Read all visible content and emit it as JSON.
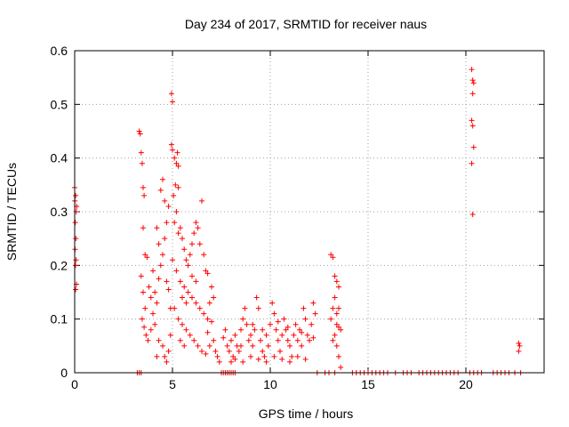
{
  "chart_data": {
    "type": "scatter",
    "title": "Day 234 of 2017, SRMTID for receiver naus",
    "xlabel": "GPS time / hours",
    "ylabel": "SRMTID / TECUs",
    "xlim": [
      0,
      24
    ],
    "ylim": [
      0,
      0.6
    ],
    "xticks": [
      0,
      5,
      10,
      15,
      20
    ],
    "yticks": [
      0,
      0.1,
      0.2,
      0.3,
      0.4,
      0.5,
      0.6
    ],
    "xtick_labels": [
      "0",
      "5",
      "10",
      "15",
      "20"
    ],
    "ytick_labels": [
      "0",
      "0.1",
      "0.2",
      "0.3",
      "0.4",
      "0.5",
      "0.6"
    ],
    "grid": true,
    "legend": "none",
    "marker": "+",
    "color": "#ff0000",
    "points": [
      [
        0.0,
        0.345
      ],
      [
        0.05,
        0.33
      ],
      [
        0.08,
        0.3
      ],
      [
        0.03,
        0.28
      ],
      [
        0.06,
        0.25
      ],
      [
        0.02,
        0.23
      ],
      [
        0.07,
        0.21
      ],
      [
        0.04,
        0.2
      ],
      [
        0.09,
        0.165
      ],
      [
        0.05,
        0.155
      ],
      [
        0.1,
        0.31
      ],
      [
        0.01,
        0.32
      ],
      [
        3.3,
        0.45
      ],
      [
        3.35,
        0.445
      ],
      [
        3.4,
        0.41
      ],
      [
        3.45,
        0.39
      ],
      [
        3.5,
        0.345
      ],
      [
        3.55,
        0.33
      ],
      [
        3.5,
        0.27
      ],
      [
        3.6,
        0.22
      ],
      [
        3.7,
        0.215
      ],
      [
        3.4,
        0.18
      ],
      [
        3.5,
        0.15
      ],
      [
        3.6,
        0.12
      ],
      [
        3.45,
        0.1
      ],
      [
        3.55,
        0.085
      ],
      [
        3.65,
        0.07
      ],
      [
        3.75,
        0.06
      ],
      [
        3.8,
        0.16
      ],
      [
        3.9,
        0.14
      ],
      [
        4.0,
        0.11
      ],
      [
        4.1,
        0.09
      ],
      [
        4.2,
        0.13
      ],
      [
        4.3,
        0.175
      ],
      [
        4.4,
        0.2
      ],
      [
        4.5,
        0.22
      ],
      [
        4.6,
        0.25
      ],
      [
        4.7,
        0.28
      ],
      [
        4.8,
        0.31
      ],
      [
        4.4,
        0.34
      ],
      [
        4.5,
        0.36
      ],
      [
        4.6,
        0.32
      ],
      [
        4.2,
        0.27
      ],
      [
        4.3,
        0.24
      ],
      [
        4.1,
        0.15
      ],
      [
        4.0,
        0.19
      ],
      [
        3.9,
        0.08
      ],
      [
        4.5,
        0.05
      ],
      [
        4.6,
        0.03
      ],
      [
        4.7,
        0.02
      ],
      [
        4.8,
        0.04
      ],
      [
        4.9,
        0.07
      ],
      [
        4.3,
        0.06
      ],
      [
        4.2,
        0.03
      ],
      [
        4.9,
        0.12
      ],
      [
        4.8,
        0.155
      ],
      [
        4.7,
        0.17
      ],
      [
        4.95,
        0.52
      ],
      [
        5.0,
        0.505
      ],
      [
        4.95,
        0.425
      ],
      [
        5.0,
        0.415
      ],
      [
        5.1,
        0.4
      ],
      [
        5.2,
        0.39
      ],
      [
        5.3,
        0.385
      ],
      [
        5.25,
        0.41
      ],
      [
        5.15,
        0.35
      ],
      [
        5.05,
        0.33
      ],
      [
        5.3,
        0.345
      ],
      [
        5.2,
        0.3
      ],
      [
        5.1,
        0.28
      ],
      [
        5.3,
        0.26
      ],
      [
        5.4,
        0.27
      ],
      [
        5.5,
        0.25
      ],
      [
        5.6,
        0.23
      ],
      [
        5.7,
        0.21
      ],
      [
        5.8,
        0.2
      ],
      [
        5.9,
        0.22
      ],
      [
        6.0,
        0.24
      ],
      [
        6.1,
        0.26
      ],
      [
        6.2,
        0.28
      ],
      [
        6.3,
        0.27
      ],
      [
        6.4,
        0.24
      ],
      [
        6.5,
        0.32
      ],
      [
        6.6,
        0.22
      ],
      [
        6.7,
        0.19
      ],
      [
        6.8,
        0.185
      ],
      [
        5.0,
        0.21
      ],
      [
        5.2,
        0.19
      ],
      [
        5.4,
        0.17
      ],
      [
        5.6,
        0.16
      ],
      [
        5.8,
        0.15
      ],
      [
        6.0,
        0.14
      ],
      [
        6.2,
        0.13
      ],
      [
        6.4,
        0.12
      ],
      [
        6.6,
        0.11
      ],
      [
        6.8,
        0.1
      ],
      [
        7.0,
        0.095
      ],
      [
        5.1,
        0.12
      ],
      [
        5.3,
        0.1
      ],
      [
        5.5,
        0.09
      ],
      [
        5.7,
        0.08
      ],
      [
        5.9,
        0.07
      ],
      [
        6.1,
        0.06
      ],
      [
        6.3,
        0.05
      ],
      [
        6.5,
        0.04
      ],
      [
        6.7,
        0.035
      ],
      [
        6.9,
        0.05
      ],
      [
        7.1,
        0.06
      ],
      [
        7.2,
        0.04
      ],
      [
        7.3,
        0.03
      ],
      [
        7.4,
        0.02
      ],
      [
        7.1,
        0.14
      ],
      [
        7.0,
        0.16
      ],
      [
        6.9,
        0.13
      ],
      [
        5.5,
        0.14
      ],
      [
        5.7,
        0.13
      ],
      [
        6.0,
        0.18
      ],
      [
        6.2,
        0.17
      ],
      [
        5.4,
        0.06
      ],
      [
        5.6,
        0.05
      ],
      [
        6.8,
        0.075
      ],
      [
        7.6,
        0.065
      ],
      [
        7.7,
        0.08
      ],
      [
        7.8,
        0.05
      ],
      [
        7.9,
        0.04
      ],
      [
        8.0,
        0.06
      ],
      [
        8.1,
        0.03
      ],
      [
        8.2,
        0.07
      ],
      [
        8.3,
        0.05
      ],
      [
        8.4,
        0.04
      ],
      [
        8.5,
        0.08
      ],
      [
        8.6,
        0.1
      ],
      [
        8.7,
        0.12
      ],
      [
        8.8,
        0.09
      ],
      [
        8.9,
        0.06
      ],
      [
        9.0,
        0.07
      ],
      [
        9.1,
        0.05
      ],
      [
        9.2,
        0.08
      ],
      [
        9.3,
        0.14
      ],
      [
        9.4,
        0.12
      ],
      [
        9.5,
        0.06
      ],
      [
        9.6,
        0.04
      ],
      [
        9.7,
        0.03
      ],
      [
        9.8,
        0.07
      ],
      [
        9.9,
        0.05
      ],
      [
        10.0,
        0.09
      ],
      [
        10.1,
        0.13
      ],
      [
        10.2,
        0.11
      ],
      [
        10.3,
        0.08
      ],
      [
        10.4,
        0.06
      ],
      [
        10.5,
        0.04
      ],
      [
        10.6,
        0.07
      ],
      [
        10.7,
        0.1
      ],
      [
        10.8,
        0.08
      ],
      [
        10.9,
        0.06
      ],
      [
        11.0,
        0.05
      ],
      [
        11.1,
        0.03
      ],
      [
        11.2,
        0.07
      ],
      [
        11.3,
        0.09
      ],
      [
        11.4,
        0.06
      ],
      [
        11.5,
        0.08
      ],
      [
        11.6,
        0.05
      ],
      [
        11.7,
        0.12
      ],
      [
        11.8,
        0.1
      ],
      [
        11.9,
        0.07
      ],
      [
        12.0,
        0.06
      ],
      [
        12.1,
        0.09
      ],
      [
        12.2,
        0.13
      ],
      [
        12.3,
        0.11
      ],
      [
        8.0,
        0.02
      ],
      [
        8.2,
        0.025
      ],
      [
        8.6,
        0.02
      ],
      [
        9.0,
        0.03
      ],
      [
        9.4,
        0.025
      ],
      [
        9.8,
        0.02
      ],
      [
        10.2,
        0.03
      ],
      [
        10.6,
        0.025
      ],
      [
        11.0,
        0.02
      ],
      [
        11.4,
        0.03
      ],
      [
        11.8,
        0.025
      ],
      [
        8.5,
        0.05
      ],
      [
        9.1,
        0.09
      ],
      [
        9.6,
        0.08
      ],
      [
        10.4,
        0.095
      ],
      [
        10.9,
        0.085
      ],
      [
        11.6,
        0.075
      ],
      [
        12.2,
        0.065
      ],
      [
        13.1,
        0.22
      ],
      [
        13.2,
        0.215
      ],
      [
        13.3,
        0.18
      ],
      [
        13.4,
        0.17
      ],
      [
        13.5,
        0.16
      ],
      [
        13.3,
        0.14
      ],
      [
        13.2,
        0.12
      ],
      [
        13.1,
        0.1
      ],
      [
        13.4,
        0.09
      ],
      [
        13.5,
        0.085
      ],
      [
        13.6,
        0.08
      ],
      [
        13.3,
        0.07
      ],
      [
        13.4,
        0.05
      ],
      [
        13.5,
        0.03
      ],
      [
        13.6,
        0.01
      ],
      [
        13.2,
        0.06
      ],
      [
        13.5,
        0.12
      ],
      [
        13.4,
        0.11
      ],
      [
        20.3,
        0.565
      ],
      [
        20.35,
        0.545
      ],
      [
        20.4,
        0.54
      ],
      [
        20.35,
        0.52
      ],
      [
        20.3,
        0.47
      ],
      [
        20.35,
        0.46
      ],
      [
        20.4,
        0.42
      ],
      [
        20.3,
        0.39
      ],
      [
        20.35,
        0.295
      ],
      [
        22.7,
        0.055
      ],
      [
        22.75,
        0.05
      ],
      [
        22.7,
        0.04
      ]
    ],
    "zeros": [
      3.2,
      3.3,
      3.4,
      7.5,
      7.6,
      7.7,
      7.8,
      7.9,
      8.0,
      8.1,
      8.2,
      12.4,
      12.8,
      13.0,
      13.3,
      14.2,
      14.4,
      14.6,
      14.8,
      15.0,
      15.2,
      15.4,
      15.6,
      15.8,
      16.0,
      16.4,
      16.8,
      17.0,
      17.2,
      17.6,
      17.8,
      18.0,
      18.2,
      18.4,
      18.6,
      18.8,
      19.0,
      19.2,
      19.4,
      19.6,
      20.2,
      20.4,
      20.6,
      20.8,
      21.4,
      21.6,
      21.8,
      22.0,
      22.2,
      22.5,
      22.8
    ]
  }
}
